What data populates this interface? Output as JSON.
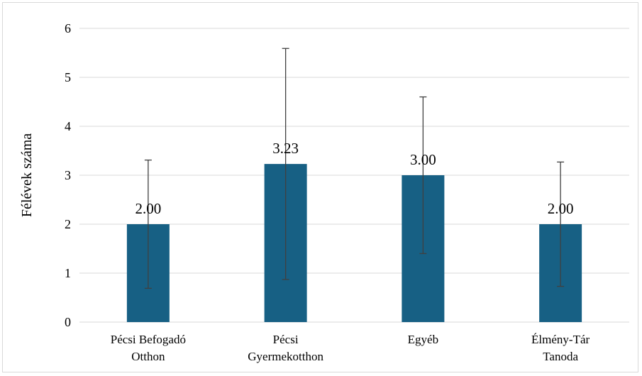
{
  "chart_data": {
    "type": "bar",
    "title": "",
    "xlabel": "",
    "ylabel": "Félévek száma",
    "ylim": [
      0,
      6
    ],
    "yticks": [
      0,
      1,
      2,
      3,
      4,
      5,
      6
    ],
    "grid": true,
    "legend": "none",
    "categories": [
      [
        "Pécsi Befogadó",
        "Otthon"
      ],
      [
        "Pécsi",
        "Gyermekotthon"
      ],
      [
        "Egyéb"
      ],
      [
        "Élmény-Tár",
        "Tanoda"
      ]
    ],
    "values": [
      2.0,
      3.23,
      3.0,
      2.0
    ],
    "data_labels": [
      "2.00",
      "3.23",
      "3.00",
      "2.00"
    ],
    "error_bars": [
      {
        "low": 0.69,
        "high": 3.31
      },
      {
        "low": 0.87,
        "high": 5.59
      },
      {
        "low": 1.4,
        "high": 4.6
      },
      {
        "low": 0.73,
        "high": 3.27
      }
    ],
    "colors": {
      "bar": "#176084",
      "error_bar": "#404040",
      "grid": "#d9d9d9"
    }
  }
}
